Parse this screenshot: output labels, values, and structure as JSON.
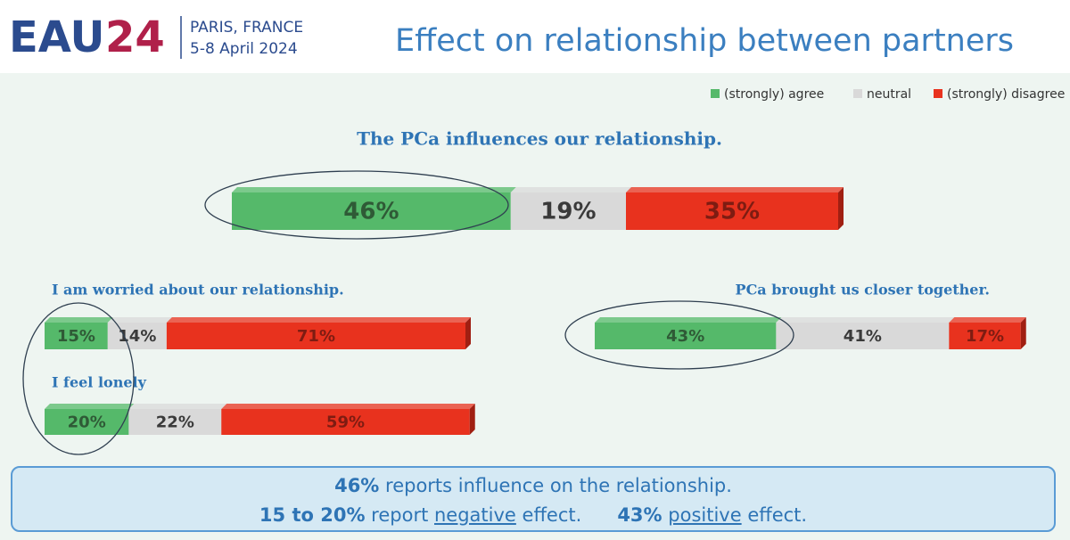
{
  "header": {
    "logo": "EAU",
    "logo_year": "24",
    "city": "PARIS, FRANCE",
    "dates": "5-8 April 2024",
    "title": "Effect on relationship between partners"
  },
  "chart_data": {
    "type": "stacked-bar",
    "orientation": "horizontal",
    "categories": [
      "The PCa influences our relationship.",
      "I am worried about our relationship.",
      "I feel lonely",
      "PCa brought us closer together."
    ],
    "series": [
      {
        "name": "(strongly) agree",
        "color": "#55b96a",
        "label_color": "#2f5a36",
        "values": [
          46,
          15,
          20,
          43
        ],
        "value_labels": [
          "46%",
          "15%",
          "20%",
          "43%"
        ]
      },
      {
        "name": "neutral",
        "color": "#d9d9d9",
        "label_color": "#3a3a3a",
        "values": [
          19,
          14,
          22,
          41
        ],
        "value_labels": [
          "19%",
          "14%",
          "22%",
          "41%"
        ]
      },
      {
        "name": "(strongly) disagree",
        "color": "#e8321e",
        "label_color": "#7e1c12",
        "values": [
          35,
          71,
          59,
          17
        ],
        "value_labels": [
          "35%",
          "71%",
          "59%",
          "17%"
        ]
      }
    ]
  },
  "summary": {
    "line1": {
      "bold": "46%",
      "text": "reports influence on the relationship."
    },
    "line2": {
      "bold": "15 to 20%",
      "pre": "report",
      "underlined": "negative",
      "post": "effect.",
      "bold2": "43%",
      "underlined2": "positive",
      "post2": "effect."
    }
  }
}
